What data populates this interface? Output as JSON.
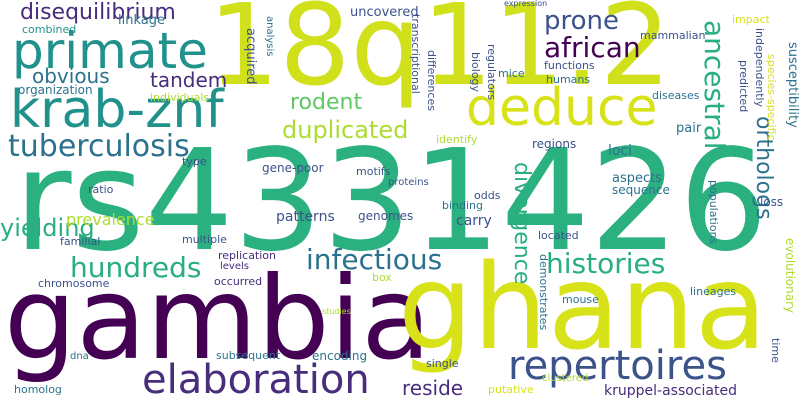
{
  "words": {
    "rs4331426": "rs4331426",
    "gambia": "gambia",
    "ghana": "ghana",
    "q18": "18q11.2",
    "primate": "primate",
    "krab": "krab-znf",
    "deduce": "deduce",
    "repertoires": "repertoires",
    "elaboration": "elaboration",
    "tuberculosis": "tuberculosis",
    "infectious": "infectious",
    "hundreds": "hundreds",
    "histories": "histories",
    "african": "african",
    "prone": "prone",
    "disequilibrium": "disequilibrium",
    "ancestral": "ancestral",
    "duplicated": "duplicated",
    "rodent": "rodent",
    "obvious": "obvious",
    "tandem": "tandem",
    "orthologs": "orthologs",
    "divergence": "divergence",
    "yielding": "yielding",
    "reside": "reside",
    "uncovered": "uncovered",
    "linkage": "linkage",
    "combined": "combined",
    "organization": "organization",
    "individuals": "individuals",
    "acquired": "acquired",
    "analysis": "analysis",
    "mammalian": "mammalian",
    "impact": "impact",
    "predicted": "predicted",
    "independently": "independently",
    "susceptibility": "susceptibility",
    "species_specific": "species-specific",
    "expression": "expression",
    "functions": "functions",
    "humans": "humans",
    "mice": "mice",
    "biology": "biology",
    "regulators": "regulators",
    "transcriptional": "transcriptional",
    "differences": "differences",
    "diseases": "diseases",
    "identify": "identify",
    "pair": "pair",
    "regions": "regions",
    "loci": "loci",
    "type": "type",
    "ratio": "ratio",
    "gene_poor": "gene-poor",
    "motifs": "motifs",
    "proteins": "proteins",
    "odds": "odds",
    "aspects": "aspects",
    "sequence": "sequence",
    "loss": "loss",
    "prevalence": "prevalence",
    "patterns": "patterns",
    "genomes": "genomes",
    "binding": "binding",
    "carry": "carry",
    "populations": "populations",
    "familial": "familial",
    "multiple": "multiple",
    "located": "located",
    "replication": "replication",
    "levels": "levels",
    "occurred": "occurred",
    "chromosome": "chromosome",
    "lineages": "lineages",
    "evolutionary": "evolutionary",
    "mouse": "mouse",
    "box": "box",
    "demonstrates": "demonstrates",
    "studies": "studies",
    "dna": "dna",
    "subsequent": "subsequent",
    "encoding": "encoding",
    "single": "single",
    "time": "time",
    "homolog": "homolog",
    "putative": "putative",
    "clustered": "clustered",
    "kruppel": "kruppel-associated"
  },
  "colors": {
    "background": "#ffffff",
    "viridis": [
      "#440154",
      "#472d7b",
      "#3b528b",
      "#2c728e",
      "#21918c",
      "#28ae80",
      "#5ec962",
      "#addc30",
      "#d8e219",
      "#fde725"
    ]
  }
}
